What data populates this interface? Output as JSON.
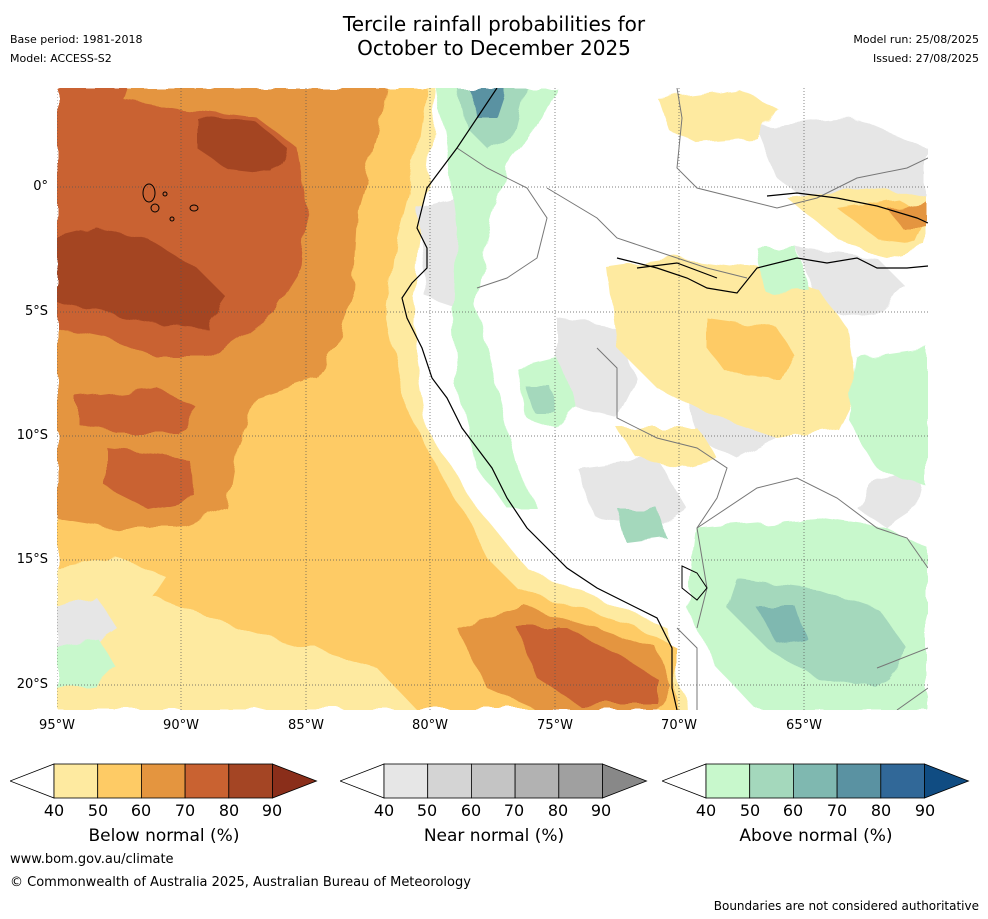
{
  "title": {
    "line1": "Tercile rainfall probabilities for",
    "line2": "October to December 2025"
  },
  "meta": {
    "base_period": "Base period: 1981-2018",
    "model": "Model: ACCESS-S2",
    "model_run": "Model run: 25/08/2025",
    "issued": "Issued: 27/08/2025"
  },
  "axes": {
    "lat_labels": [
      "0°",
      "5°S",
      "10°S",
      "15°S",
      "20°S"
    ],
    "lon_labels": [
      "95°W",
      "90°W",
      "85°W",
      "80°W",
      "75°W",
      "70°W",
      "65°W"
    ]
  },
  "colorbars": {
    "ticks": [
      "40",
      "50",
      "60",
      "70",
      "80",
      "90"
    ],
    "below": {
      "title": "Below normal (%)",
      "colors": [
        "#ffffff",
        "#feeaa0",
        "#fecb65",
        "#e4953f",
        "#c96231",
        "#a44524",
        "#8a2e1a"
      ]
    },
    "near": {
      "title": "Near normal (%)",
      "colors": [
        "#ffffff",
        "#e6e6e6",
        "#d4d4d4",
        "#c4c4c4",
        "#b2b2b2",
        "#a0a0a0",
        "#888888"
      ]
    },
    "above": {
      "title": "Above normal (%)",
      "colors": [
        "#ffffff",
        "#c8f8cc",
        "#a4d8bc",
        "#7fb8b0",
        "#5a92a2",
        "#316898",
        "#104c82"
      ]
    }
  },
  "footer": {
    "url": "www.bom.gov.au/climate",
    "copyright": "© Commonwealth of Australia 2025, Australian Bureau of Meteorology",
    "disclaimer": "Boundaries are not considered authoritative"
  }
}
